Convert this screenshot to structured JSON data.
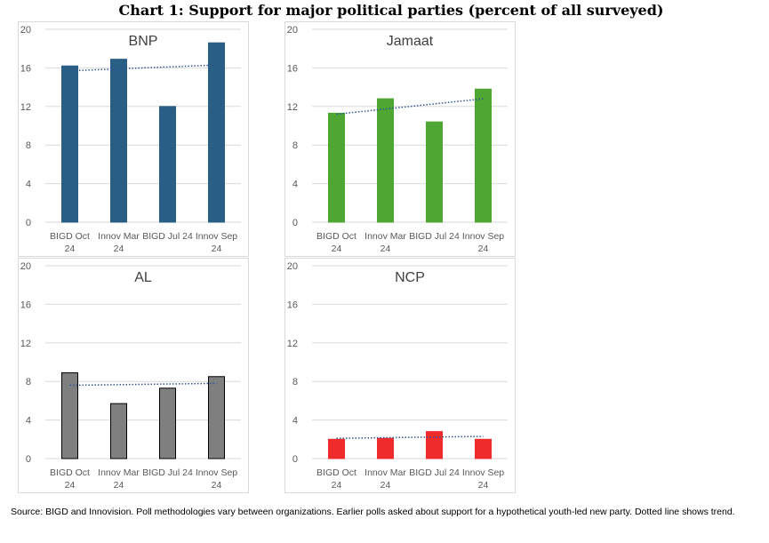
{
  "page_title": "Chart 1: Support for major political parties (percent of all surveyed)",
  "source_note": "Source: BIGD and Innovision. Poll methodologies vary between organizations. Earlier polls asked about support for a hypothetical youth-led new party. Dotted line shows trend.",
  "chart_data": [
    {
      "type": "bar",
      "title": "BNP",
      "categories": [
        "BIGD Oct 24",
        "Innov Mar 24",
        "BIGD Jul 24",
        "Innov Sep 24"
      ],
      "category_lines": [
        [
          "BIGD Oct",
          "24"
        ],
        [
          "Innov Mar",
          "24"
        ],
        [
          "BIGD Jul 24",
          ""
        ],
        [
          "Innov Sep",
          "24"
        ]
      ],
      "values": [
        16.2,
        16.9,
        12.0,
        18.6
      ],
      "trend": [
        15.7,
        16.3
      ],
      "ylim": [
        0,
        20
      ],
      "yticks": [
        0,
        4,
        8,
        12,
        16,
        20
      ],
      "xlabel": "",
      "ylabel": "",
      "color": "#2a5f85",
      "stroke": "#2a5f85",
      "grid": true,
      "legend": "none"
    },
    {
      "type": "bar",
      "title": "Jamaat",
      "categories": [
        "BIGD Oct 24",
        "Innov Mar 24",
        "BIGD Jul 24",
        "Innov Sep 24"
      ],
      "category_lines": [
        [
          "BIGD Oct",
          "24"
        ],
        [
          "Innov Mar",
          "24"
        ],
        [
          "BIGD Jul 24",
          ""
        ],
        [
          "Innov Sep",
          "24"
        ]
      ],
      "values": [
        11.3,
        12.8,
        10.4,
        13.8
      ],
      "trend": [
        11.2,
        12.8
      ],
      "ylim": [
        0,
        20
      ],
      "yticks": [
        0,
        4,
        8,
        12,
        16,
        20
      ],
      "xlabel": "",
      "ylabel": "",
      "color": "#4ea733",
      "stroke": "#4ea733",
      "grid": true,
      "legend": "none"
    },
    {
      "type": "bar",
      "title": "AL",
      "categories": [
        "BIGD Oct 24",
        "Innov Mar 24",
        "BIGD Jul 24",
        "Innov Sep 24"
      ],
      "category_lines": [
        [
          "BIGD Oct",
          "24"
        ],
        [
          "Innov Mar",
          "24"
        ],
        [
          "BIGD Jul 24",
          ""
        ],
        [
          "Innov Sep",
          "24"
        ]
      ],
      "values": [
        8.9,
        5.7,
        7.3,
        8.5
      ],
      "trend": [
        7.6,
        7.8
      ],
      "ylim": [
        0,
        20
      ],
      "yticks": [
        0,
        4,
        8,
        12,
        16,
        20
      ],
      "xlabel": "",
      "ylabel": "",
      "color": "#7f7f7f",
      "stroke": "#000000",
      "grid": true,
      "legend": "none"
    },
    {
      "type": "bar",
      "title": "NCP",
      "categories": [
        "BIGD Oct 24",
        "Innov Mar 24",
        "BIGD Jul 24",
        "Innov Sep 24"
      ],
      "category_lines": [
        [
          "BIGD Oct",
          "24"
        ],
        [
          "Innov Mar",
          "24"
        ],
        [
          "BIGD Jul 24",
          ""
        ],
        [
          "Innov Sep",
          "24"
        ]
      ],
      "values": [
        2.0,
        2.1,
        2.8,
        2.0
      ],
      "trend": [
        2.1,
        2.3
      ],
      "ylim": [
        0,
        20
      ],
      "yticks": [
        0,
        4,
        8,
        12,
        16,
        20
      ],
      "xlabel": "",
      "ylabel": "",
      "color": "#f02b2b",
      "stroke": "#f02b2b",
      "grid": true,
      "legend": "none"
    }
  ],
  "colors": {
    "trend_line": "#2f5597",
    "gridline": "#d9d9d9",
    "axis_text": "#595959",
    "title_text": "#404040"
  }
}
